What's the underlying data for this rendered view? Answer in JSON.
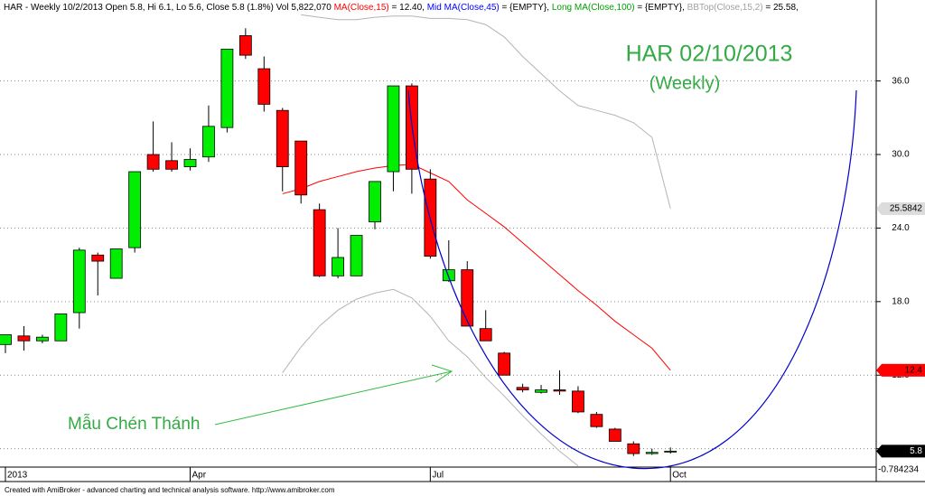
{
  "chart_data": {
    "type": "candlestick",
    "header": [
      {
        "text": "HAR - Weekly 10/2/2013 Open 5.8, Hi 6.1, Lo 5.6, Close 5.8 (1.8%) Vol 5,822,070 ",
        "color": "#000000"
      },
      {
        "text": "MA(Close,15)",
        "color": "#ff0000"
      },
      {
        "text": " = 12.40, ",
        "color": "#000000"
      },
      {
        "text": "Mid MA(Close,45)",
        "color": "#0000ff"
      },
      {
        "text": " = {EMPTY}, ",
        "color": "#000000"
      },
      {
        "text": "Long MA(Close,100)",
        "color": "#00a000"
      },
      {
        "text": " = {EMPTY}, ",
        "color": "#000000"
      },
      {
        "text": "BBTop(Close,15,2)",
        "color": "#a0a0a0"
      },
      {
        "text": " = 25.58,",
        "color": "#000000"
      }
    ],
    "title": "HAR 02/10/2013",
    "subtitle": "(Weekly)",
    "annotation": "Mẫu Chén Thánh",
    "footer": "Created with AmiBroker - advanced charting and technical analysis software. http://www.amibroker.com",
    "categories": [
      "2013",
      null,
      null,
      null,
      null,
      null,
      null,
      null,
      null,
      null,
      "Apr",
      null,
      null,
      null,
      null,
      null,
      null,
      null,
      null,
      null,
      null,
      null,
      null,
      "Jul",
      null,
      null,
      null,
      null,
      null,
      null,
      null,
      null,
      null,
      null,
      null,
      null,
      "Oct"
    ],
    "open": [
      14.5,
      15.2,
      14.8,
      14.8,
      17.1,
      21.8,
      19.9,
      22.4,
      30.0,
      29.5,
      29.0,
      29.8,
      32.2,
      39.7,
      37.0,
      33.6,
      31.1,
      25.5,
      20.1,
      20.1,
      24.5,
      28.6,
      35.6,
      28.0,
      19.7,
      20.6,
      15.8,
      13.8,
      11.0,
      10.6,
      10.8,
      10.7,
      8.8,
      7.6,
      6.4,
      5.6,
      5.8
    ],
    "high": [
      15.3,
      16.0,
      15.3,
      17.0,
      22.4,
      22.0,
      22.3,
      28.6,
      32.7,
      31.0,
      30.5,
      34.0,
      38.6,
      40.3,
      38.0,
      33.8,
      31.1,
      26.0,
      24.0,
      23.4,
      27.8,
      35.6,
      35.8,
      28.8,
      23.0,
      21.3,
      17.3,
      13.9,
      11.3,
      11.2,
      12.4,
      11.1,
      9.0,
      7.7,
      6.6,
      6.0,
      6.1
    ],
    "low": [
      13.8,
      14.0,
      14.6,
      14.8,
      15.8,
      18.5,
      19.9,
      22.0,
      28.6,
      28.6,
      28.7,
      29.4,
      31.8,
      37.8,
      33.5,
      27.0,
      26.0,
      20.0,
      19.9,
      20.1,
      23.9,
      27.0,
      26.8,
      21.5,
      19.6,
      16.0,
      14.8,
      12.0,
      10.6,
      10.5,
      10.4,
      8.9,
      7.7,
      6.6,
      5.4,
      5.5,
      5.6
    ],
    "close": [
      15.3,
      14.8,
      15.1,
      17.0,
      22.2,
      21.3,
      22.3,
      28.6,
      28.8,
      28.8,
      29.6,
      32.3,
      38.6,
      38.1,
      34.1,
      29.0,
      26.7,
      20.1,
      21.6,
      23.4,
      27.8,
      35.6,
      28.8,
      21.7,
      20.6,
      16.0,
      14.8,
      12.0,
      10.8,
      10.8,
      10.7,
      9.0,
      7.8,
      6.6,
      5.6,
      5.7,
      5.8
    ],
    "up_color": "#00ee00",
    "down_color": "#ff0000",
    "series": [
      {
        "color": "#ff0000",
        "values": [
          null,
          null,
          null,
          null,
          null,
          null,
          null,
          null,
          null,
          null,
          null,
          null,
          null,
          null,
          null,
          26.8,
          27.2,
          27.8,
          28.2,
          28.6,
          28.9,
          29.1,
          29.2,
          28.5,
          27.8,
          26.3,
          25.2,
          24.1,
          22.8,
          21.5,
          20.2,
          18.9,
          17.7,
          16.4,
          15.3,
          14.2,
          12.4
        ]
      },
      {
        "color": "#b4b4b4",
        "values": [
          null,
          null,
          null,
          null,
          null,
          null,
          null,
          null,
          null,
          null,
          null,
          null,
          null,
          null,
          null,
          null,
          41.4,
          41.2,
          41.0,
          41.0,
          41.2,
          41.3,
          41.3,
          41.1,
          41.1,
          41.0,
          40.6,
          39.6,
          38.0,
          36.6,
          35.2,
          34.0,
          33.6,
          33.2,
          32.6,
          31.4,
          25.6
        ]
      },
      {
        "color": "#b4b4b4",
        "values": [
          null,
          null,
          null,
          null,
          null,
          null,
          null,
          null,
          null,
          null,
          null,
          null,
          null,
          null,
          null,
          12.2,
          14.3,
          16.0,
          17.3,
          18.2,
          18.7,
          19.0,
          18.3,
          16.8,
          14.8,
          13.5,
          11.8,
          10.3,
          8.7,
          7.2,
          5.8,
          4.6,
          null,
          null,
          null,
          null,
          null
        ]
      }
    ],
    "badges": [
      {
        "value": 25.5842,
        "color": "#dcdcdc",
        "text_color": "#000000"
      },
      {
        "value": 12.4,
        "color": "#ff0000",
        "text_color": "#000000"
      },
      {
        "value": 5.8,
        "color": "#000000",
        "text_color": "#ffffff"
      }
    ],
    "lower_pane_value": -0.784234,
    "ylim": [
      4.5,
      41.5
    ],
    "yticks": [
      {
        "value": 6,
        "label": "6.0"
      },
      {
        "value": 12,
        "label": "12.0"
      },
      {
        "value": 18,
        "label": "18.0"
      },
      {
        "value": 24,
        "label": "24.0"
      },
      {
        "value": 30,
        "label": "30.0"
      },
      {
        "value": 36,
        "label": "36.0"
      }
    ],
    "grid": true
  }
}
